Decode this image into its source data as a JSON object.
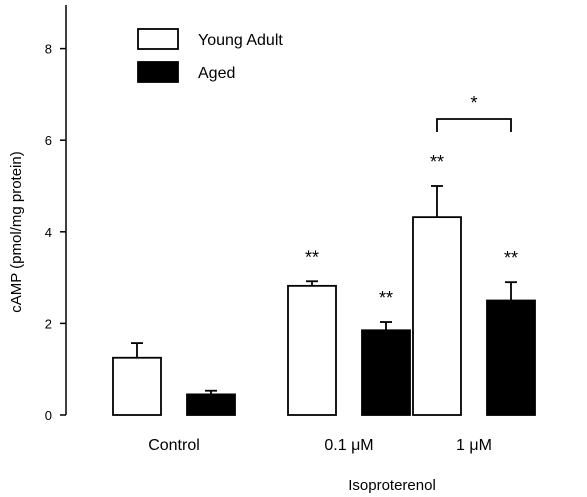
{
  "chart_data": {
    "type": "bar",
    "xlabel": "Isoproterenol",
    "ylabel": "cAMP (pmol/mg protein)",
    "ylim": [
      0,
      9
    ],
    "yticks": [
      0,
      2,
      4,
      6,
      8
    ],
    "categories": [
      "Control",
      "0.1 μM",
      "1 μM"
    ],
    "series": [
      {
        "name": "Young Adult",
        "fill": "#ffffff",
        "values": [
          1.25,
          2.82,
          4.32
        ],
        "errors": [
          0.32,
          0.1,
          0.68
        ],
        "annotations": [
          "",
          "**",
          "**"
        ]
      },
      {
        "name": "Aged",
        "fill": "#000000",
        "values": [
          0.45,
          1.85,
          2.5
        ],
        "errors": [
          0.08,
          0.18,
          0.4
        ],
        "annotations": [
          "",
          "**",
          "**"
        ]
      }
    ],
    "comparisons": [
      {
        "category": "1 μM",
        "label": "*"
      }
    ],
    "legend": "top-left"
  }
}
